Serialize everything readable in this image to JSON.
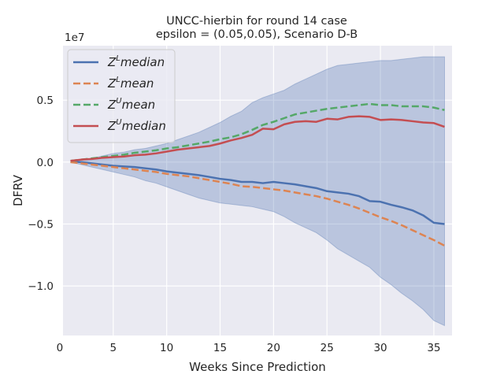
{
  "chart_data": {
    "type": "line",
    "title_line1": "UNCC-hierbin for round 14 case",
    "title_line2": "epsilon = (0.05,0.05), Scenario D-B",
    "xlabel": "Weeks Since Prediction",
    "ylabel": "DFRV",
    "y_offset_label": "1e7",
    "xlim": [
      0.3,
      36.7
    ],
    "ylim": [
      -14.0,
      9.4
    ],
    "x_ticks": [
      0,
      5,
      10,
      15,
      20,
      25,
      30,
      35
    ],
    "y_ticks": [
      -10,
      -5,
      0,
      5
    ],
    "x_tick_labels": [
      "0",
      "5",
      "10",
      "15",
      "20",
      "25",
      "30",
      "35"
    ],
    "y_tick_labels": [
      "−1.0",
      "−0.5",
      "0.0",
      "0.5"
    ],
    "grid": true,
    "legend_position": "top-left",
    "x": [
      1,
      2,
      3,
      4,
      5,
      6,
      7,
      8,
      9,
      10,
      11,
      12,
      13,
      14,
      15,
      16,
      17,
      18,
      19,
      20,
      21,
      22,
      23,
      24,
      25,
      26,
      27,
      28,
      29,
      30,
      31,
      32,
      33,
      34,
      35,
      36
    ],
    "band": {
      "color": "#4c72b0",
      "upper": [
        0.0,
        0.2,
        0.3,
        0.5,
        0.7,
        0.8,
        1.0,
        1.1,
        1.3,
        1.5,
        1.8,
        2.1,
        2.4,
        2.8,
        3.2,
        3.7,
        4.1,
        4.8,
        5.2,
        5.5,
        5.8,
        6.3,
        6.7,
        7.1,
        7.5,
        7.8,
        7.9,
        8.0,
        8.1,
        8.2,
        8.2,
        8.3,
        8.4,
        8.5,
        8.5,
        8.5
      ],
      "lower": [
        0.0,
        -0.2,
        -0.4,
        -0.6,
        -0.8,
        -1.0,
        -1.2,
        -1.5,
        -1.7,
        -2.0,
        -2.3,
        -2.6,
        -2.9,
        -3.1,
        -3.3,
        -3.4,
        -3.5,
        -3.6,
        -3.8,
        -4.0,
        -4.4,
        -4.9,
        -5.3,
        -5.7,
        -6.3,
        -7.0,
        -7.5,
        -8.0,
        -8.5,
        -9.3,
        -9.9,
        -10.6,
        -11.2,
        -11.9,
        -12.8,
        -13.2
      ]
    },
    "series": [
      {
        "color": "#4c72b0",
        "dash": "solid",
        "values": [
          0.05,
          0.0,
          -0.1,
          -0.2,
          -0.3,
          -0.35,
          -0.4,
          -0.5,
          -0.6,
          -0.75,
          -0.85,
          -0.95,
          -1.05,
          -1.2,
          -1.35,
          -1.45,
          -1.6,
          -1.6,
          -1.7,
          -1.6,
          -1.7,
          -1.8,
          -1.95,
          -2.1,
          -2.35,
          -2.45,
          -2.55,
          -2.75,
          -3.15,
          -3.2,
          -3.45,
          -3.65,
          -3.9,
          -4.3,
          -4.9,
          -5.0
        ]
      },
      {
        "color": "#dd8452",
        "dash": "dashed",
        "values": [
          0.0,
          -0.1,
          -0.2,
          -0.3,
          -0.4,
          -0.5,
          -0.6,
          -0.7,
          -0.8,
          -0.95,
          -1.05,
          -1.15,
          -1.3,
          -1.45,
          -1.6,
          -1.75,
          -1.95,
          -2.0,
          -2.1,
          -2.2,
          -2.3,
          -2.45,
          -2.6,
          -2.75,
          -2.95,
          -3.2,
          -3.45,
          -3.75,
          -4.1,
          -4.45,
          -4.75,
          -5.1,
          -5.5,
          -5.9,
          -6.3,
          -6.75
        ]
      },
      {
        "color": "#55a868",
        "dash": "dashed",
        "values": [
          0.1,
          0.2,
          0.3,
          0.4,
          0.5,
          0.6,
          0.75,
          0.85,
          0.95,
          1.1,
          1.2,
          1.35,
          1.5,
          1.65,
          1.85,
          2.0,
          2.25,
          2.6,
          3.0,
          3.25,
          3.55,
          3.85,
          4.0,
          4.15,
          4.3,
          4.4,
          4.5,
          4.6,
          4.7,
          4.6,
          4.6,
          4.5,
          4.5,
          4.5,
          4.4,
          4.2
        ]
      },
      {
        "color": "#c44e52",
        "dash": "solid",
        "values": [
          0.1,
          0.2,
          0.25,
          0.35,
          0.4,
          0.45,
          0.55,
          0.6,
          0.7,
          0.85,
          1.0,
          1.1,
          1.2,
          1.3,
          1.5,
          1.75,
          1.95,
          2.2,
          2.7,
          2.65,
          3.05,
          3.25,
          3.3,
          3.25,
          3.5,
          3.45,
          3.65,
          3.7,
          3.65,
          3.4,
          3.45,
          3.4,
          3.3,
          3.2,
          3.15,
          2.85
        ]
      }
    ],
    "legend": [
      {
        "color": "#4c72b0",
        "dash": "solid",
        "base": "Z",
        "sup": "L",
        "word": "median"
      },
      {
        "color": "#dd8452",
        "dash": "dashed",
        "base": "Z",
        "sup": "L",
        "word": "mean"
      },
      {
        "color": "#55a868",
        "dash": "dashed",
        "base": "Z",
        "sup": "U",
        "word": "mean"
      },
      {
        "color": "#c44e52",
        "dash": "solid",
        "base": "Z",
        "sup": "U",
        "word": "median"
      }
    ]
  }
}
